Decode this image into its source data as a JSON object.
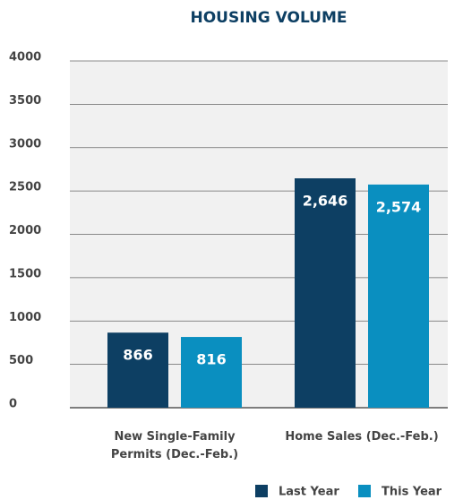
{
  "chart_data": {
    "type": "bar",
    "title": "HOUSING VOLUME",
    "categories": [
      "New Single-Family Permits (Dec.-Feb.)",
      "Home Sales (Dec.-Feb.)"
    ],
    "series": [
      {
        "name": "Last Year",
        "color": "#0d3f63",
        "values": [
          866,
          2646
        ],
        "value_labels": [
          "866",
          "2,646"
        ]
      },
      {
        "name": "This Year",
        "color": "#0a8fc0",
        "values": [
          816,
          2574
        ],
        "value_labels": [
          "816",
          "2,574"
        ]
      }
    ],
    "ylim": [
      0,
      4000
    ],
    "yticks": [
      0,
      500,
      1000,
      1500,
      2000,
      2500,
      3000,
      3500,
      4000
    ],
    "grid": true
  }
}
